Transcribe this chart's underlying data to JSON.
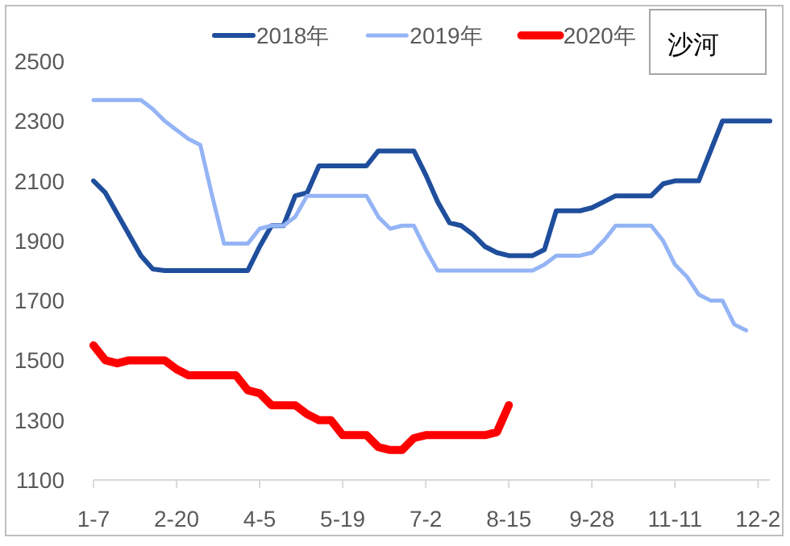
{
  "chart_data": {
    "type": "line",
    "categories": [
      "1-7",
      null,
      null,
      null,
      null,
      null,
      null,
      "2-20",
      null,
      null,
      null,
      null,
      null,
      null,
      "4-5",
      null,
      null,
      null,
      null,
      null,
      null,
      "5-19",
      null,
      null,
      null,
      null,
      null,
      null,
      "7-2",
      null,
      null,
      null,
      null,
      null,
      null,
      "8-15",
      null,
      null,
      null,
      null,
      null,
      null,
      "9-28",
      null,
      null,
      null,
      null,
      null,
      null,
      "11-11",
      null,
      null,
      null,
      null,
      null,
      null,
      "12-2",
      null
    ],
    "series": [
      {
        "name": "2018年",
        "color": "#1f4e9c",
        "values": [
          2100,
          2060,
          1990,
          1920,
          1850,
          1805,
          1800,
          1800,
          1800,
          1800,
          1800,
          1800,
          1800,
          1800,
          1880,
          1950,
          1950,
          2050,
          2060,
          2150,
          2150,
          2150,
          2150,
          2150,
          2200,
          2200,
          2200,
          2200,
          2120,
          2030,
          1960,
          1950,
          1920,
          1880,
          1860,
          1850,
          1850,
          1850,
          1870,
          2000,
          2000,
          2000,
          2010,
          2030,
          2050,
          2050,
          2050,
          2050,
          2090,
          2100,
          2100,
          2100,
          2200,
          2300,
          2300,
          2300,
          2300,
          2300
        ]
      },
      {
        "name": "2019年",
        "color": "#94b4f5",
        "values": [
          2370,
          2370,
          2370,
          2370,
          2370,
          2340,
          2300,
          2270,
          2240,
          2220,
          2050,
          1890,
          1890,
          1890,
          1940,
          1950,
          1950,
          1980,
          2050,
          2050,
          2050,
          2050,
          2050,
          2050,
          1980,
          1940,
          1950,
          1950,
          1870,
          1800,
          1800,
          1800,
          1800,
          1800,
          1800,
          1800,
          1800,
          1800,
          1820,
          1850,
          1850,
          1850,
          1860,
          1900,
          1950,
          1950,
          1950,
          1950,
          1900,
          1820,
          1780,
          1720,
          1700,
          1700,
          1620,
          1600,
          null,
          null
        ]
      },
      {
        "name": "2020年",
        "color": "#ff0000",
        "values": [
          1550,
          1500,
          1490,
          1500,
          1500,
          1500,
          1500,
          1470,
          1450,
          1450,
          1450,
          1450,
          1450,
          1400,
          1390,
          1350,
          1350,
          1350,
          1320,
          1300,
          1300,
          1250,
          1250,
          1250,
          1210,
          1200,
          1200,
          1240,
          1250,
          1250,
          1250,
          1250,
          1250,
          1250,
          1260,
          1350,
          null,
          null,
          null,
          null,
          null,
          null,
          null,
          null,
          null,
          null,
          null,
          null,
          null,
          null,
          null,
          null,
          null,
          null,
          null,
          null,
          null,
          null
        ]
      }
    ],
    "ylim": [
      1100,
      2500
    ],
    "yticks": [
      1100,
      1300,
      1500,
      1700,
      1900,
      2100,
      2300,
      2500
    ],
    "grid": false,
    "legend": "top",
    "marker": "none",
    "line_style": "solid",
    "annotations": [
      "沙河"
    ]
  }
}
